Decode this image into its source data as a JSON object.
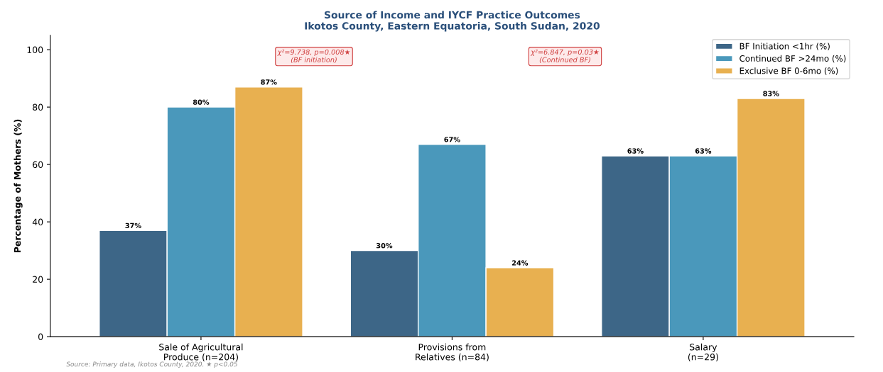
{
  "chart_data": {
    "type": "bar",
    "title": "Source of Income and IYCF Practice Outcomes\nIkotos County, Eastern Equatoria, South Sudan, 2020",
    "ylabel": "Percentage of Mothers (%)",
    "categories": [
      "Sale of Agricultural\nProduce (n=204)",
      "Provisions from\nRelatives (n=84)",
      "Salary\n(n=29)"
    ],
    "series": [
      {
        "name": "BF Initiation <1hr (%)",
        "color": "#3d6687",
        "values": [
          37,
          30,
          63
        ],
        "value_labels": [
          "37%",
          "30%",
          "63%"
        ]
      },
      {
        "name": "Continued BF >24mo (%)",
        "color": "#4a98bb",
        "values": [
          80,
          67,
          63
        ],
        "value_labels": [
          "80%",
          "67%",
          "63%"
        ]
      },
      {
        "name": "Exclusive BF 0-6mo (%)",
        "color": "#e8b050",
        "values": [
          87,
          24,
          83
        ],
        "value_labels": [
          "87%",
          "24%",
          "83%"
        ]
      }
    ],
    "ylim": [
      0,
      105
    ],
    "yticks": [
      0,
      20,
      40,
      60,
      80,
      100
    ],
    "grid": false,
    "legend": "top right",
    "annotations": [
      "χ²=9.738, p=0.008★\n(BF initiation)",
      "χ²=6.847, p=0.03★\n(Continued BF)",
      "Source: Primary data, Ikotos County, 2020. ★ p<0.05"
    ]
  }
}
